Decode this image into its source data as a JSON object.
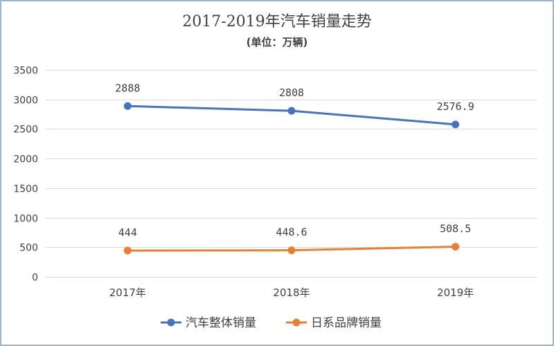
{
  "chart_data": {
    "type": "line",
    "title": "2017-2019年汽车销量走势",
    "subtitle": "(单位：万辆)",
    "categories": [
      "2017年",
      "2018年",
      "2019年"
    ],
    "series": [
      {
        "name": "汽车整体销量",
        "values": [
          2888,
          2808,
          2576.9
        ],
        "color": "#4472C4"
      },
      {
        "name": "日系品牌销量",
        "values": [
          444,
          448.6,
          508.5
        ],
        "color": "#ED7D31"
      }
    ],
    "ylim": [
      0,
      3500
    ],
    "yticks": [
      0,
      500,
      1000,
      1500,
      2000,
      2500,
      3000,
      3500
    ],
    "grid": true,
    "legend": "bottom",
    "data_labels": true
  },
  "colors": {
    "border": "#9DB3D3",
    "grid": "#D9D9D9",
    "background": "#FFFFFF"
  }
}
